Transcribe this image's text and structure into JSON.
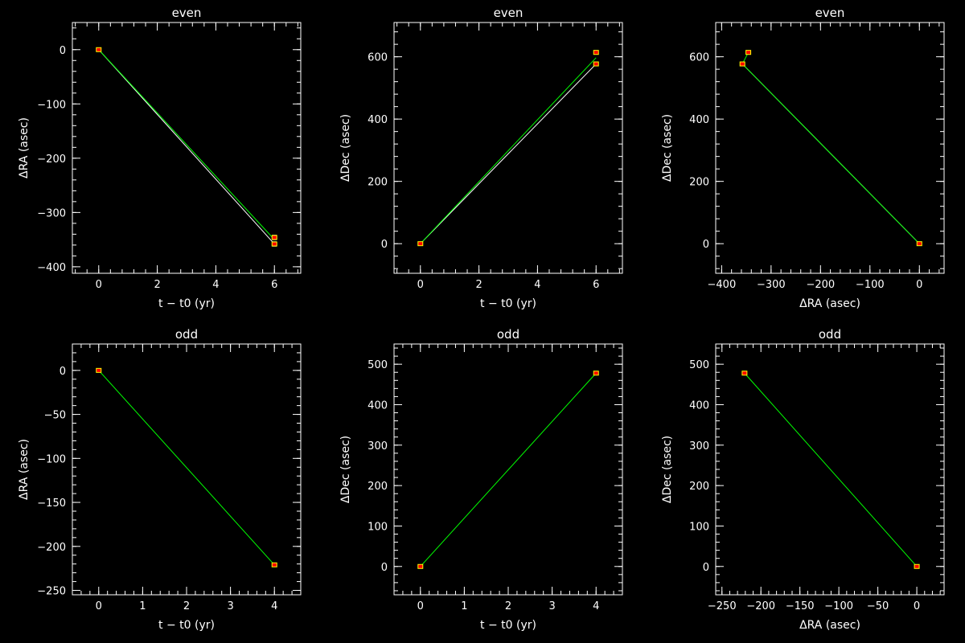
{
  "colors": {
    "background": "#000000",
    "axis": "#ffffff",
    "fit": "#00ff00",
    "path": "#ffffff",
    "marker_fill": "#ff0000",
    "marker_edge": "#ffff00"
  },
  "chart_data": [
    {
      "type": "line",
      "title": "even",
      "xlabel": "t − t0 (yr)",
      "ylabel": "ΔRA (asec)",
      "xlim": [
        -0.9,
        6.9
      ],
      "ylim": [
        -412,
        50
      ],
      "xticks": [
        0,
        2,
        4,
        6
      ],
      "xtick_labels": [
        "0",
        "2",
        "4",
        "6"
      ],
      "yticks": [
        -400,
        -300,
        -200,
        -100,
        0
      ],
      "ytick_labels": [
        "−400",
        "−300",
        "−200",
        "−100",
        "0"
      ],
      "points": [
        {
          "x": 0,
          "y": 0,
          "err": 2
        },
        {
          "x": 6,
          "y": -346,
          "err": 4
        },
        {
          "x": 6,
          "y": -358,
          "err": 4
        }
      ],
      "series": [
        {
          "style": "path",
          "x": [
            0,
            6
          ],
          "y": [
            0,
            -358
          ]
        },
        {
          "style": "fit",
          "x": [
            0,
            6
          ],
          "y": [
            0,
            -350
          ]
        }
      ]
    },
    {
      "type": "line",
      "title": "even",
      "xlabel": "t − t0 (yr)",
      "ylabel": "ΔDec (asec)",
      "xlim": [
        -0.9,
        6.9
      ],
      "ylim": [
        -95,
        710
      ],
      "xticks": [
        0,
        2,
        4,
        6
      ],
      "xtick_labels": [
        "0",
        "2",
        "4",
        "6"
      ],
      "yticks": [
        0,
        200,
        400,
        600
      ],
      "ytick_labels": [
        "0",
        "200",
        "400",
        "600"
      ],
      "points": [
        {
          "x": 0,
          "y": 0,
          "err": 4
        },
        {
          "x": 6,
          "y": 614,
          "err": 6
        },
        {
          "x": 6,
          "y": 577,
          "err": 6
        }
      ],
      "series": [
        {
          "style": "path",
          "x": [
            0,
            6
          ],
          "y": [
            0,
            577
          ]
        },
        {
          "style": "fit",
          "x": [
            0,
            6
          ],
          "y": [
            0,
            597
          ]
        }
      ]
    },
    {
      "type": "line",
      "title": "even",
      "xlabel": "ΔRA (asec)",
      "ylabel": "ΔDec (asec)",
      "xlim": [
        -412,
        50
      ],
      "ylim": [
        -95,
        710
      ],
      "xticks": [
        -400,
        -300,
        -200,
        -100,
        0
      ],
      "xtick_labels": [
        "−400",
        "−300",
        "−200",
        "−100",
        "0"
      ],
      "yticks": [
        0,
        200,
        400,
        600
      ],
      "ytick_labels": [
        "0",
        "200",
        "400",
        "600"
      ],
      "points": [
        {
          "x": 0,
          "y": 0,
          "err": 4
        },
        {
          "x": -346,
          "y": 614,
          "err": 6
        },
        {
          "x": -358,
          "y": 577,
          "err": 6
        }
      ],
      "series": [
        {
          "style": "path",
          "x": [
            0,
            -358
          ],
          "y": [
            0,
            577
          ]
        },
        {
          "style": "fit",
          "x": [
            0,
            -358,
            -346
          ],
          "y": [
            0,
            577,
            614
          ]
        }
      ]
    },
    {
      "type": "line",
      "title": "odd",
      "xlabel": "t − t0 (yr)",
      "ylabel": "ΔRA (asec)",
      "xlim": [
        -0.6,
        4.6
      ],
      "ylim": [
        -255,
        30
      ],
      "xticks": [
        0,
        1,
        2,
        3,
        4
      ],
      "xtick_labels": [
        "0",
        "1",
        "2",
        "3",
        "4"
      ],
      "yticks": [
        -250,
        -200,
        -150,
        -100,
        -50,
        0
      ],
      "ytick_labels": [
        "−250",
        "−200",
        "−150",
        "−100",
        "−50",
        "0"
      ],
      "points": [
        {
          "x": 0,
          "y": 0,
          "err": 1.5
        },
        {
          "x": 4,
          "y": -221,
          "err": 1.5
        }
      ],
      "series": [
        {
          "style": "fit",
          "x": [
            0,
            4
          ],
          "y": [
            0,
            -221
          ]
        }
      ]
    },
    {
      "type": "line",
      "title": "odd",
      "xlabel": "t − t0 (yr)",
      "ylabel": "ΔDec (asec)",
      "xlim": [
        -0.6,
        4.6
      ],
      "ylim": [
        -70,
        550
      ],
      "xticks": [
        0,
        1,
        2,
        3,
        4
      ],
      "xtick_labels": [
        "0",
        "1",
        "2",
        "3",
        "4"
      ],
      "yticks": [
        0,
        100,
        200,
        300,
        400,
        500
      ],
      "ytick_labels": [
        "0",
        "100",
        "200",
        "300",
        "400",
        "500"
      ],
      "points": [
        {
          "x": 0,
          "y": 0,
          "err": 3
        },
        {
          "x": 4,
          "y": 478,
          "err": 3
        }
      ],
      "series": [
        {
          "style": "fit",
          "x": [
            0,
            4
          ],
          "y": [
            0,
            478
          ]
        }
      ]
    },
    {
      "type": "line",
      "title": "odd",
      "xlabel": "ΔRA (asec)",
      "ylabel": "ΔDec (asec)",
      "xlim": [
        -258,
        35
      ],
      "ylim": [
        -70,
        550
      ],
      "xticks": [
        -250,
        -200,
        -150,
        -100,
        -50,
        0
      ],
      "xtick_labels": [
        "−250",
        "−200",
        "−150",
        "−100",
        "−50",
        "0"
      ],
      "yticks": [
        0,
        100,
        200,
        300,
        400,
        500
      ],
      "ytick_labels": [
        "0",
        "100",
        "200",
        "300",
        "400",
        "500"
      ],
      "points": [
        {
          "x": 0,
          "y": 0,
          "err": 3
        },
        {
          "x": -221,
          "y": 478,
          "err": 3
        }
      ],
      "series": [
        {
          "style": "fit",
          "x": [
            0,
            -221
          ],
          "y": [
            0,
            478
          ]
        }
      ]
    }
  ]
}
